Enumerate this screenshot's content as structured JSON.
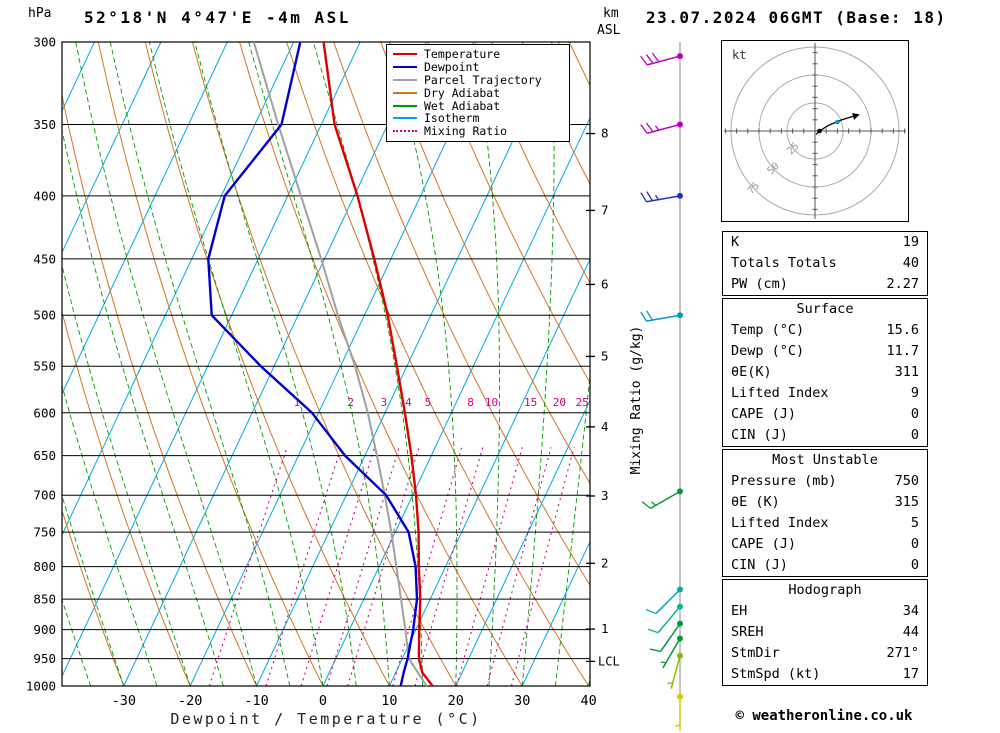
{
  "header": {
    "station": "52°18'N 4°47'E -4m ASL",
    "datetime": "23.07.2024 06GMT (Base: 18)",
    "pressure_unit": "hPa",
    "km_label": "km",
    "asl_label": "ASL"
  },
  "legend": [
    {
      "label": "Temperature",
      "color": "#dd0000",
      "style": "solid"
    },
    {
      "label": "Dewpoint",
      "color": "#0000cc",
      "style": "solid"
    },
    {
      "label": "Parcel Trajectory",
      "color": "#a0a0a0",
      "style": "solid"
    },
    {
      "label": "Dry Adiabat",
      "color": "#cc7722",
      "style": "solid"
    },
    {
      "label": "Wet Adiabat",
      "color": "#009900",
      "style": "solid"
    },
    {
      "label": "Isotherm",
      "color": "#00aadd",
      "style": "solid"
    },
    {
      "label": "Mixing Ratio",
      "color": "#cc0088",
      "style": "dotted"
    }
  ],
  "chart_data": {
    "type": "skewt-logp",
    "title": "52°18'N 4°47'E -4m ASL",
    "xlabel": "Dewpoint / Temperature (°C)",
    "mixing_ratio_axis_label": "Mixing Ratio (g/kg)",
    "x_ticks": [
      -30,
      -20,
      -10,
      0,
      10,
      20,
      30,
      40
    ],
    "pressure_levels": [
      300,
      350,
      400,
      450,
      500,
      550,
      600,
      650,
      700,
      750,
      800,
      850,
      900,
      950,
      1000
    ],
    "km_marks": [
      {
        "km": 8,
        "p": 356
      },
      {
        "km": 7,
        "p": 411
      },
      {
        "km": 6,
        "p": 472
      },
      {
        "km": 5,
        "p": 540
      },
      {
        "km": 4,
        "p": 616
      },
      {
        "km": 3,
        "p": 701
      },
      {
        "km": 2,
        "p": 795
      },
      {
        "km": 1,
        "p": 899
      }
    ],
    "lcl": {
      "label": "LCL",
      "p": 955
    },
    "mixing_ratio_values": [
      1,
      2,
      3,
      4,
      5,
      8,
      10,
      15,
      20,
      25
    ],
    "isotherm_step": 10,
    "dry_adiabat_step": 10,
    "wet_adiabat_step": 5,
    "colors": {
      "temperature": "#dd0000",
      "dewpoint": "#0000cc",
      "parcel": "#a0a0a0",
      "dry_adiabat": "#cc7722",
      "wet_adiabat": "#009900",
      "isotherm": "#00aadd",
      "mixing_ratio": "#cc0088",
      "isobar": "#000000"
    },
    "sounding": {
      "pressure": [
        1000,
        975,
        950,
        925,
        900,
        850,
        800,
        750,
        700,
        650,
        600,
        550,
        500,
        450,
        400,
        350,
        300
      ],
      "temperature": [
        16.5,
        14.0,
        12.5,
        11.5,
        10.5,
        8.5,
        6.0,
        3.5,
        0.5,
        -3.0,
        -7.0,
        -11.5,
        -16.5,
        -22.5,
        -29.5,
        -38.0,
        -45.5
      ],
      "dewpoint": [
        11.7,
        11.2,
        10.8,
        10.2,
        9.6,
        8.0,
        5.5,
        2.0,
        -4.0,
        -13.0,
        -21.0,
        -32.0,
        -43.0,
        -47.5,
        -49.5,
        -46.0,
        -49.0
      ]
    },
    "parcel": {
      "pressure": [
        1000,
        950,
        900,
        850,
        800,
        750,
        700,
        650,
        600,
        550,
        500,
        450,
        400,
        350,
        300
      ],
      "temperature": [
        15.6,
        11.0,
        8.4,
        5.6,
        2.6,
        -0.6,
        -4.2,
        -8.2,
        -12.6,
        -17.8,
        -24.0,
        -30.5,
        -38.0,
        -46.5,
        -56.0
      ]
    },
    "wind_barbs": [
      {
        "p": 308,
        "dir": 255,
        "spd": 30,
        "color": "#bb00bb"
      },
      {
        "p": 350,
        "dir": 255,
        "spd": 25,
        "color": "#bb00bb"
      },
      {
        "p": 400,
        "dir": 260,
        "spd": 25,
        "color": "#2233bb"
      },
      {
        "p": 500,
        "dir": 260,
        "spd": 20,
        "color": "#0099cc"
      },
      {
        "p": 695,
        "dir": 240,
        "spd": 15,
        "color": "#009933"
      },
      {
        "p": 835,
        "dir": 225,
        "spd": 10,
        "color": "#00aaaa"
      },
      {
        "p": 862,
        "dir": 220,
        "spd": 10,
        "color": "#00bb88"
      },
      {
        "p": 890,
        "dir": 215,
        "spd": 10,
        "color": "#009933"
      },
      {
        "p": 915,
        "dir": 210,
        "spd": 5,
        "color": "#009933"
      },
      {
        "p": 945,
        "dir": 195,
        "spd": 5,
        "color": "#88bb00"
      },
      {
        "p": 1020,
        "dir": 180,
        "spd": 5,
        "color": "#cccc00"
      }
    ]
  },
  "hodograph": {
    "unit_label": "kt",
    "rings": [
      25,
      50,
      75
    ],
    "trace": [
      [
        1,
        -3
      ],
      [
        4,
        0
      ],
      [
        12,
        5
      ],
      [
        24,
        10
      ],
      [
        34,
        13
      ]
    ],
    "dots": [
      {
        "u": 4,
        "v": 0,
        "color": "#000000"
      },
      {
        "u": 20,
        "v": 8,
        "color": "#0099cc"
      }
    ]
  },
  "panels": [
    {
      "rows": [
        [
          "K",
          "19"
        ],
        [
          "Totals Totals",
          "40"
        ],
        [
          "PW (cm)",
          "2.27"
        ]
      ]
    },
    {
      "title": "Surface",
      "rows": [
        [
          "Temp (°C)",
          "15.6"
        ],
        [
          "Dewp (°C)",
          "11.7"
        ],
        [
          "θE(K)",
          "311"
        ],
        [
          "Lifted Index",
          "9"
        ],
        [
          "CAPE (J)",
          "0"
        ],
        [
          "CIN (J)",
          "0"
        ]
      ]
    },
    {
      "title": "Most Unstable",
      "rows": [
        [
          "Pressure (mb)",
          "750"
        ],
        [
          "θE (K)",
          "315"
        ],
        [
          "Lifted Index",
          "5"
        ],
        [
          "CAPE (J)",
          "0"
        ],
        [
          "CIN (J)",
          "0"
        ]
      ]
    },
    {
      "title": "Hodograph",
      "rows": [
        [
          "EH",
          "34"
        ],
        [
          "SREH",
          "44"
        ],
        [
          "StmDir",
          "271°"
        ],
        [
          "StmSpd (kt)",
          "17"
        ]
      ]
    }
  ],
  "footer": {
    "copyright": "© weatheronline.co.uk"
  }
}
